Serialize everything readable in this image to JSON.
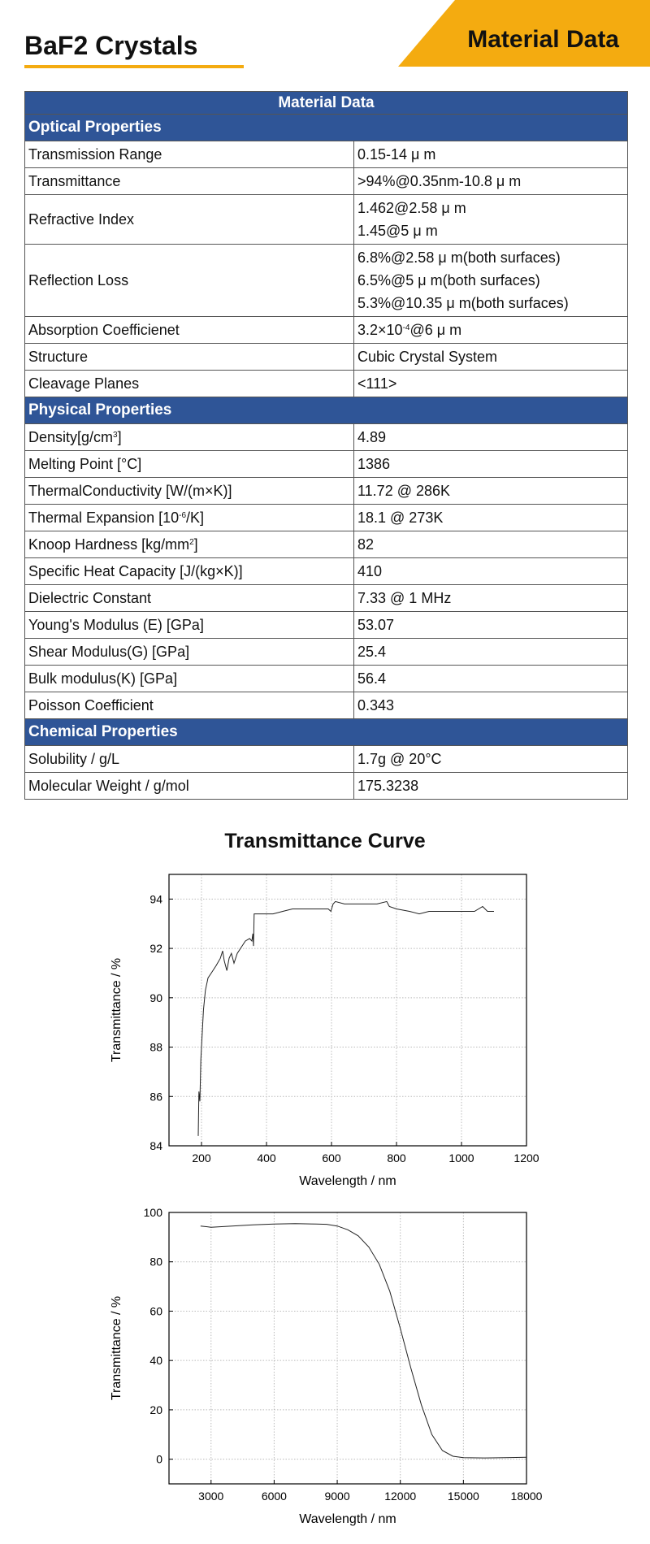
{
  "header": {
    "title": "BaF2 Crystals",
    "banner": "Material Data"
  },
  "table": {
    "title": "Material Data",
    "sections": [
      {
        "name": "Optical Properties",
        "rows": [
          {
            "key": "Transmission Range",
            "values": [
              "0.15-14 μ m"
            ]
          },
          {
            "key": "Transmittance",
            "values": [
              ">94%@0.35nm-10.8 μ m"
            ]
          },
          {
            "key": "Refractive Index",
            "values": [
              "1.462@2.58 μ m",
              "1.45@5 μ m"
            ]
          },
          {
            "key": "Reflection Loss",
            "values": [
              "6.8%@2.58 μ m(both surfaces)",
              "6.5%@5 μ m(both surfaces)",
              "5.3%@10.35 μ m(both surfaces)"
            ]
          },
          {
            "key": "Absorption Coefficienet",
            "values": [
              "3.2×10<sup>-4</sup>@6 μ m"
            ]
          },
          {
            "key": "Structure",
            "values": [
              "Cubic Crystal System"
            ]
          },
          {
            "key": "Cleavage Planes",
            "values": [
              "&lt;111&gt;"
            ]
          }
        ]
      },
      {
        "name": "Physical Properties",
        "rows": [
          {
            "key": "Density[g/cm<sup>3</sup>]",
            "values": [
              "4.89"
            ]
          },
          {
            "key": "Melting Point [°C]",
            "values": [
              "1386"
            ]
          },
          {
            "key": "ThermalConductivity [W/(m×K)]",
            "values": [
              "11.72 @ 286K"
            ]
          },
          {
            "key": "Thermal Expansion [10<sup>-6</sup>/K]",
            "values": [
              "18.1 @ 273K"
            ]
          },
          {
            "key": "Knoop Hardness [kg/mm<sup>2</sup>]",
            "values": [
              "82"
            ]
          },
          {
            "key": "Specific Heat Capacity [J/(kg×K)]",
            "values": [
              "410"
            ]
          },
          {
            "key": "Dielectric Constant",
            "values": [
              "7.33 @ 1 MHz"
            ]
          },
          {
            "key": "Young's Modulus (E) [GPa]",
            "values": [
              "53.07"
            ]
          },
          {
            "key": "Shear Modulus(G) [GPa]",
            "values": [
              "25.4"
            ]
          },
          {
            "key": "Bulk modulus(K) [GPa]",
            "values": [
              "56.4"
            ]
          },
          {
            "key": "Poisson Coefficient",
            "values": [
              "0.343"
            ]
          }
        ]
      },
      {
        "name": "Chemical Properties",
        "rows": [
          {
            "key": "Solubility / g/L",
            "values": [
              "1.7g @ 20°C"
            ]
          },
          {
            "key": "Molecular Weight / g/mol",
            "values": [
              "175.3238"
            ]
          }
        ]
      }
    ]
  },
  "curve_title": "Transmittance Curve",
  "colors": {
    "accent": "#f4ab10",
    "table_header": "#2f5597"
  },
  "chart_data": [
    {
      "type": "line",
      "xlabel": "Wavelength / nm",
      "ylabel": "Transmittance / %",
      "xlim": [
        100,
        1200
      ],
      "ylim": [
        84,
        95
      ],
      "xticks": [
        200,
        400,
        600,
        800,
        1000,
        1200
      ],
      "yticks": [
        84,
        86,
        88,
        90,
        92,
        94
      ],
      "grid": true,
      "x": [
        190,
        192,
        195,
        198,
        202,
        206,
        212,
        220,
        230,
        245,
        258,
        265,
        270,
        278,
        285,
        292,
        300,
        310,
        320,
        335,
        348,
        355,
        358,
        360,
        362,
        380,
        400,
        420,
        450,
        480,
        520,
        560,
        590,
        598,
        605,
        612,
        640,
        700,
        740,
        770,
        778,
        800,
        840,
        870,
        900,
        950,
        1000,
        1040,
        1065,
        1080,
        1100
      ],
      "y": [
        84.4,
        86.2,
        85.8,
        87.5,
        88.5,
        89.5,
        90.3,
        90.8,
        91.0,
        91.3,
        91.6,
        91.9,
        91.5,
        91.1,
        91.6,
        91.8,
        91.4,
        91.8,
        92.0,
        92.3,
        92.4,
        92.3,
        92.6,
        92.1,
        93.4,
        93.4,
        93.4,
        93.4,
        93.5,
        93.6,
        93.6,
        93.6,
        93.6,
        93.5,
        93.8,
        93.9,
        93.8,
        93.8,
        93.8,
        93.9,
        93.7,
        93.6,
        93.5,
        93.4,
        93.5,
        93.5,
        93.5,
        93.5,
        93.7,
        93.5,
        93.5
      ]
    },
    {
      "type": "line",
      "xlabel": "Wavelength / nm",
      "ylabel": "Transmittance / %",
      "xlim": [
        1000,
        18000
      ],
      "ylim": [
        -10,
        100
      ],
      "xticks": [
        3000,
        6000,
        9000,
        12000,
        15000,
        18000
      ],
      "yticks": [
        0,
        20,
        40,
        60,
        80,
        100
      ],
      "grid": true,
      "x": [
        2500,
        3000,
        4000,
        5000,
        6000,
        7000,
        8000,
        8500,
        9000,
        9500,
        10000,
        10500,
        11000,
        11500,
        12000,
        12500,
        13000,
        13500,
        14000,
        14500,
        15000,
        16000,
        17000,
        18000
      ],
      "y": [
        94.5,
        94,
        94.5,
        95,
        95.3,
        95.5,
        95.3,
        95.2,
        94.5,
        93,
        90.5,
        86,
        79,
        68,
        53,
        37,
        22,
        10,
        3.5,
        1.2,
        0.6,
        0.5,
        0.6,
        0.8
      ]
    }
  ]
}
